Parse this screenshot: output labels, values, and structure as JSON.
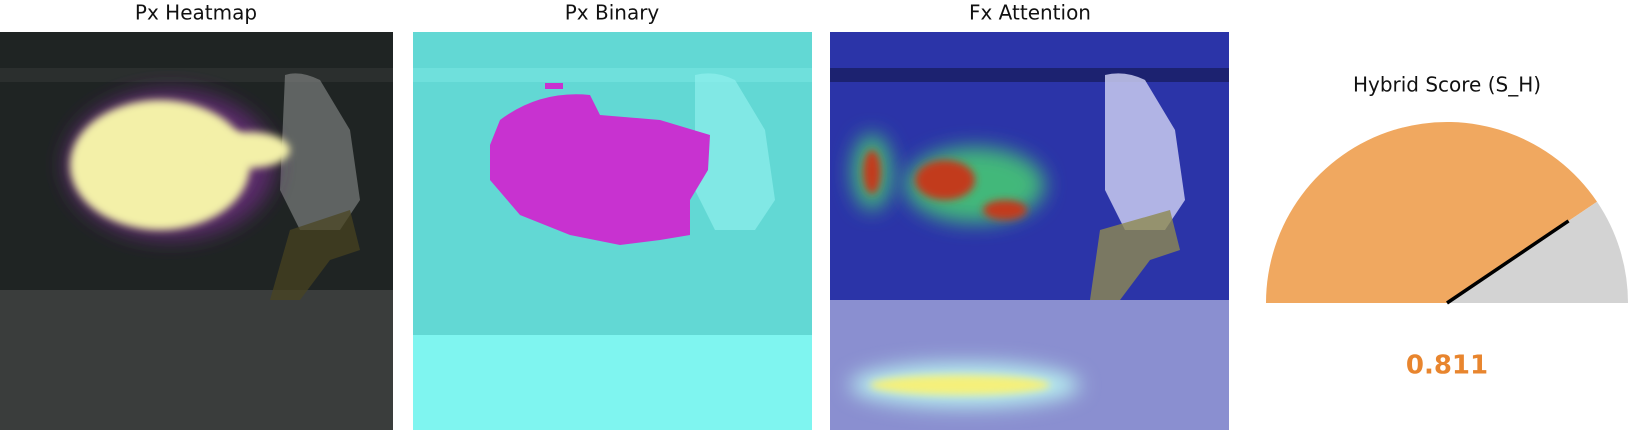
{
  "panels": [
    {
      "title": "Px Heatmap"
    },
    {
      "title": "Px Binary"
    },
    {
      "title": "Fx Attention"
    }
  ],
  "chart_data": {
    "type": "gauge",
    "title": "Hybrid Score (S_H)",
    "value": 0.811,
    "ylim": [
      0,
      1
    ],
    "color": "#f0a860",
    "rest_color": "#d3d3d3",
    "value_color": "#e8852e"
  }
}
